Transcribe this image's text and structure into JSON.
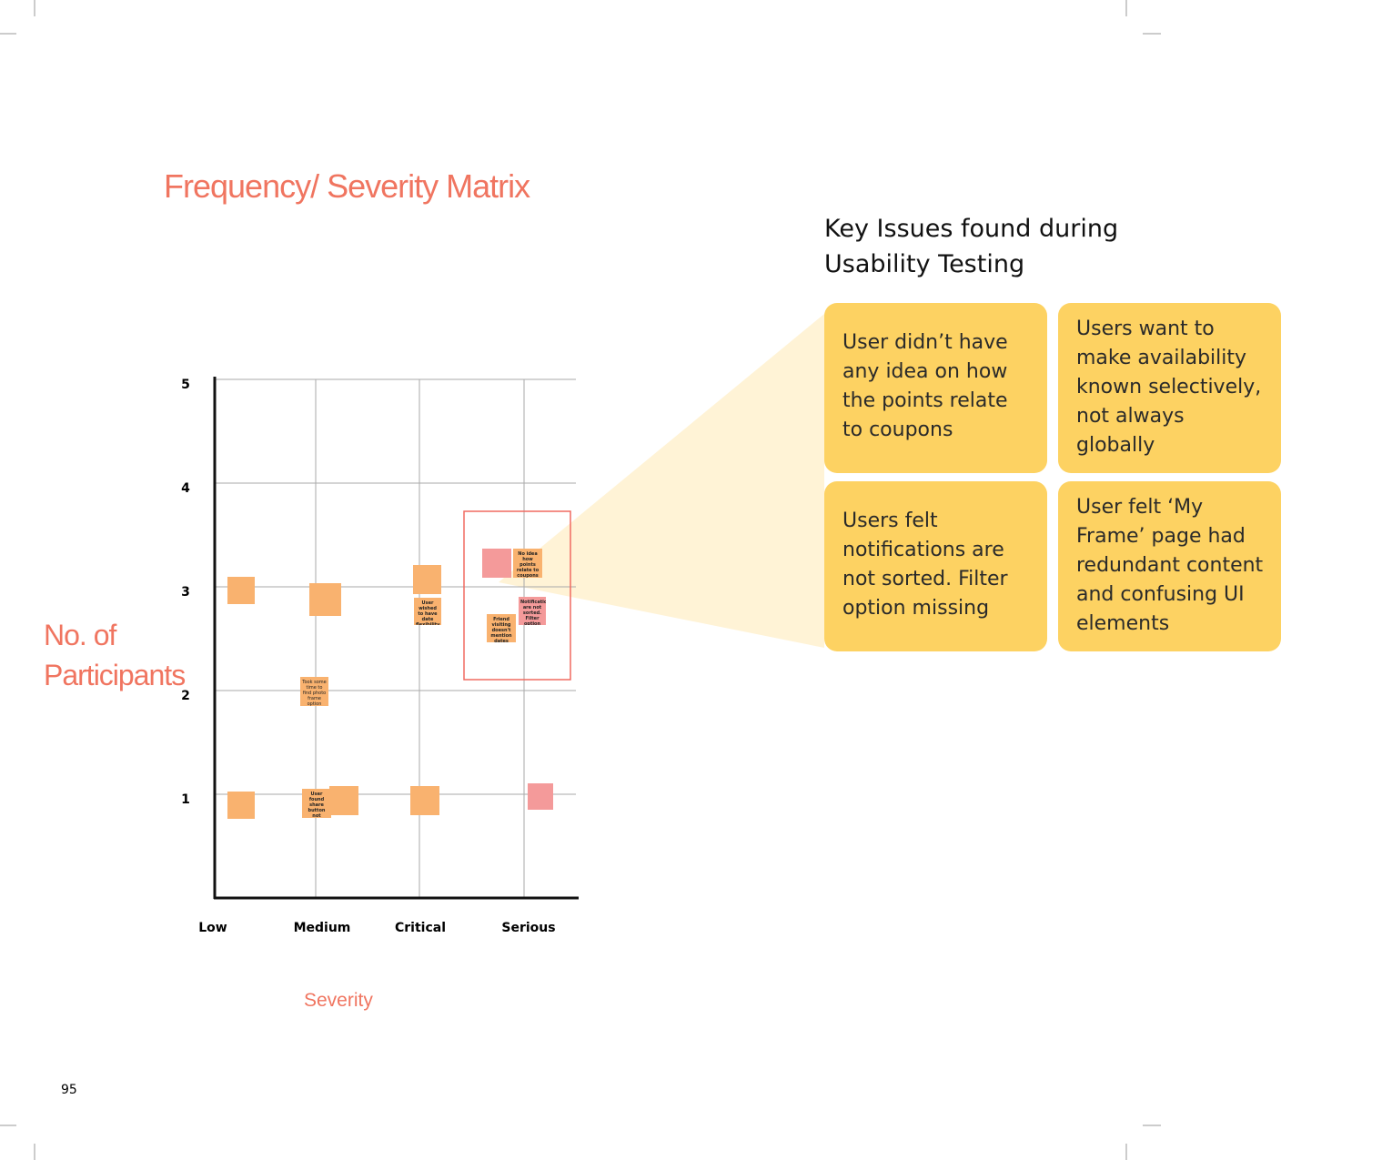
{
  "page": {
    "title": "Frequency/ Severity Matrix",
    "number": "95"
  },
  "matrix": {
    "y_label": "No. of Participants",
    "x_label": "Severity",
    "yticks": [
      1,
      2,
      3,
      4,
      5
    ],
    "x_categories": [
      "Low",
      "Medium",
      "Critical",
      "Serious"
    ],
    "notes": [
      "Took some time to find photo frame option",
      "User wished to have date flexibility",
      "No idea how points relate to coupons",
      "Notifications are not sorted. Filter option missing",
      "Friend visiting doesn't mention dates",
      "User found share button not prominent"
    ]
  },
  "key_issues": {
    "title": "Key Issues found during Usability Testing",
    "cards": [
      "User didn’t have any idea on how the points relate to coupons",
      "Users want to make availability known selectively, not always globally",
      "Users felt notifications are not sorted. Filter option missing",
      "User felt ‘My Frame’ page had redundant content and confusing UI elements"
    ]
  }
}
